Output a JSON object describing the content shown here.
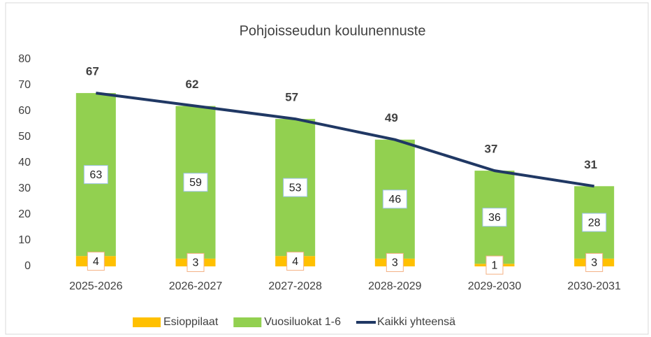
{
  "chart_data": {
    "type": "bar",
    "title": "Pohjoisseudun koulunennuste",
    "categories": [
      "2025-2026",
      "2026-2027",
      "2027-2028",
      "2028-2029",
      "2029-2030",
      "2030-2031"
    ],
    "series": [
      {
        "name": "Esioppilaat",
        "type": "bar",
        "color": "#ffc000",
        "values": [
          4,
          3,
          4,
          3,
          1,
          3
        ]
      },
      {
        "name": "Vuosiluokat 1-6",
        "type": "bar",
        "color": "#92d050",
        "values": [
          63,
          59,
          53,
          46,
          36,
          28
        ]
      },
      {
        "name": "Kaikki yhteensä",
        "type": "line",
        "color": "#203864",
        "values": [
          67,
          62,
          57,
          49,
          37,
          31
        ]
      }
    ],
    "ylim": [
      0,
      80
    ],
    "yticks": [
      0,
      10,
      20,
      30,
      40,
      50,
      60,
      70,
      80
    ],
    "legend": "bottom"
  }
}
